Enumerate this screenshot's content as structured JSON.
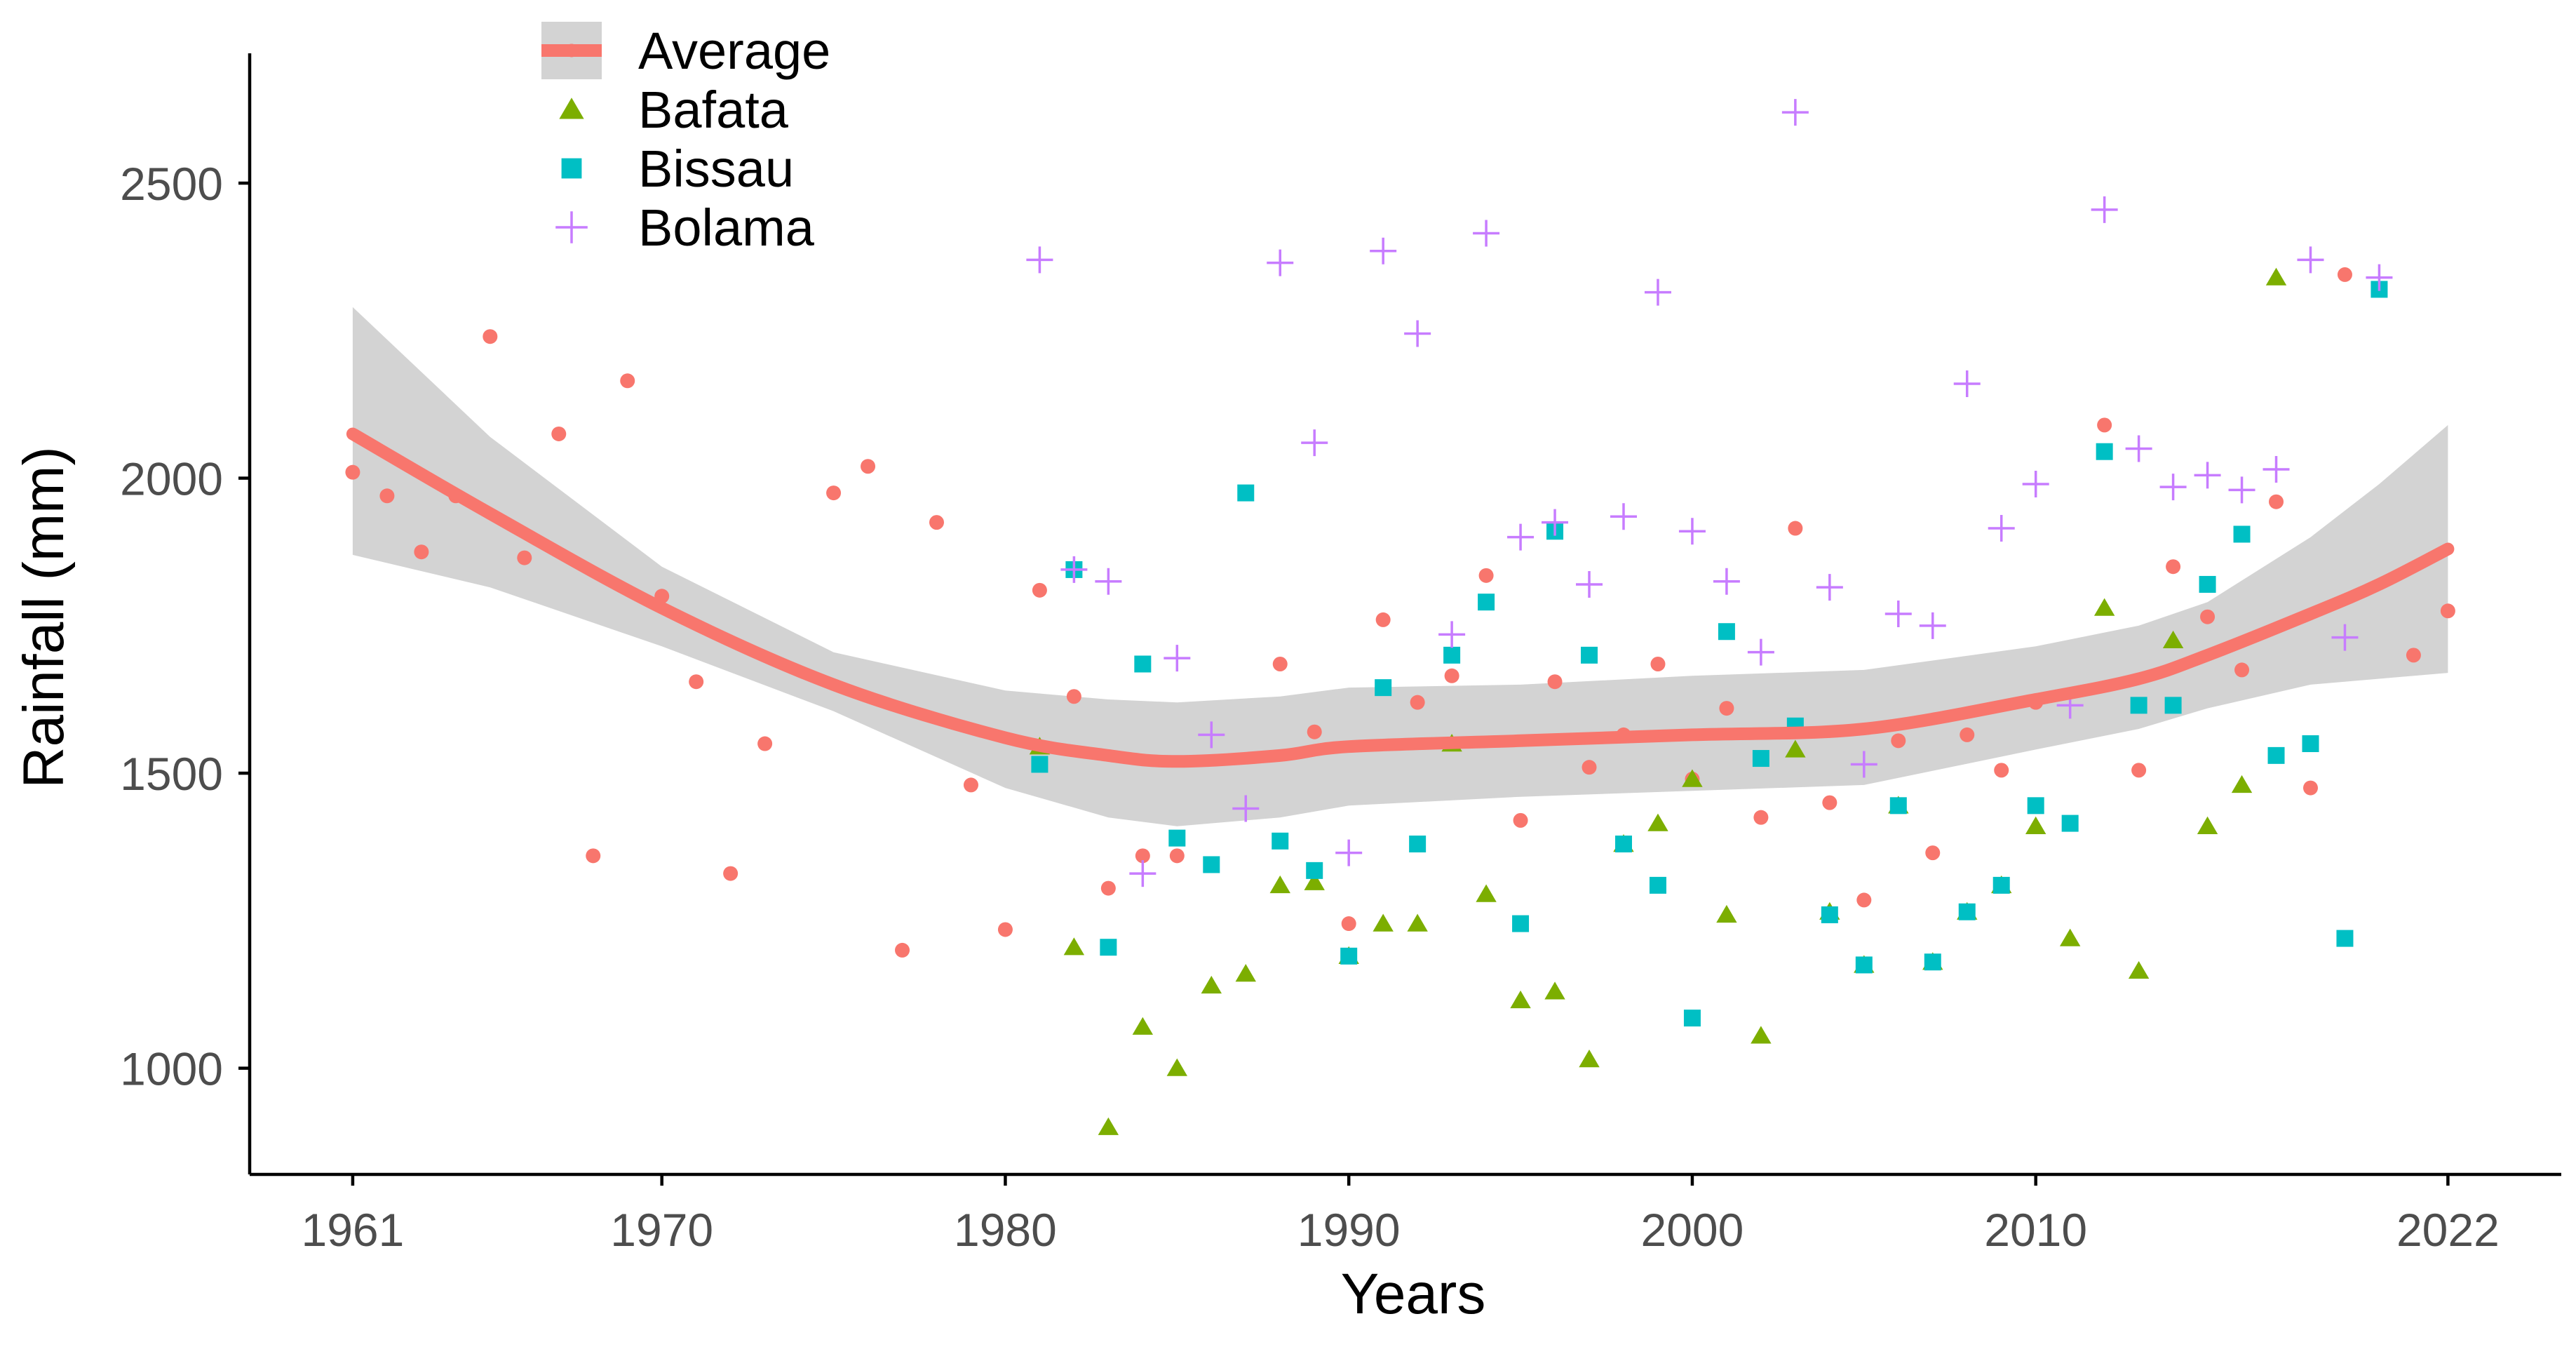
{
  "chart_data": {
    "type": "scatter",
    "title": "",
    "xlabel": "Years",
    "ylabel": "Rainfall (mm)",
    "xlim": [
      1958,
      2025.3
    ],
    "ylim": [
      820,
      2720
    ],
    "x_ticks": [
      1961,
      1970,
      1980,
      1990,
      2000,
      2010,
      2022
    ],
    "y_ticks": [
      1000,
      1500,
      2000,
      2500
    ],
    "grid": false,
    "legend_position": "top-left",
    "colors": {
      "average": "#F8766D",
      "bafata": "#7CAE00",
      "bissau": "#00BFC4",
      "bolama": "#C77CFF",
      "ribbon": "#D3D3D3"
    },
    "legend": [
      {
        "key": "average",
        "label": "Average",
        "marker": "line-point"
      },
      {
        "key": "bafata",
        "label": "Bafata",
        "marker": "triangle"
      },
      {
        "key": "bissau",
        "label": "Bissau",
        "marker": "square"
      },
      {
        "key": "bolama",
        "label": "Bolama",
        "marker": "plus"
      }
    ],
    "trend": {
      "name": "Average (smoothed fit)",
      "x": [
        1961,
        1965,
        1970,
        1975,
        1980,
        1983,
        1985,
        1988,
        1990,
        1995,
        2000,
        2005,
        2010,
        2013,
        2015,
        2018,
        2020,
        2022
      ],
      "y": [
        2075,
        1940,
        1780,
        1650,
        1560,
        1530,
        1520,
        1530,
        1545,
        1555,
        1565,
        1575,
        1625,
        1660,
        1700,
        1770,
        1820,
        1880
      ],
      "lower": [
        1870,
        1815,
        1715,
        1605,
        1475,
        1425,
        1410,
        1425,
        1445,
        1460,
        1470,
        1480,
        1540,
        1575,
        1610,
        1650,
        1660,
        1670
      ],
      "upper": [
        2290,
        2070,
        1850,
        1705,
        1640,
        1625,
        1620,
        1630,
        1645,
        1650,
        1665,
        1675,
        1715,
        1750,
        1790,
        1900,
        1990,
        2090
      ]
    },
    "series": [
      {
        "name": "Average",
        "key": "average",
        "x": [
          1961,
          1962,
          1963,
          1964,
          1965,
          1966,
          1967,
          1968,
          1969,
          1970,
          1971,
          1972,
          1973,
          1975,
          1976,
          1977,
          1978,
          1979,
          1980,
          1981,
          1982,
          1983,
          1984,
          1985,
          1988,
          1989,
          1990,
          1991,
          1992,
          1993,
          1994,
          1995,
          1996,
          1997,
          1998,
          1999,
          2000,
          2001,
          2002,
          2003,
          2004,
          2005,
          2006,
          2007,
          2008,
          2009,
          2010,
          2012,
          2013,
          2014,
          2015,
          2016,
          2017,
          2018,
          2019,
          2021,
          2022
        ],
        "y": [
          2010,
          1970,
          1875,
          1970,
          2240,
          1865,
          2075,
          1360,
          2165,
          1800,
          1655,
          1330,
          1550,
          1975,
          2020,
          1200,
          1925,
          1480,
          1235,
          1810,
          1630,
          1305,
          1360,
          1360,
          1685,
          1570,
          1245,
          1760,
          1620,
          1665,
          1835,
          1420,
          1655,
          1510,
          1565,
          1685,
          1490,
          1610,
          1425,
          1915,
          1450,
          1285,
          1555,
          1365,
          1565,
          1505,
          1620,
          2090,
          1505,
          1850,
          1765,
          1675,
          1960,
          1475,
          2345,
          1700,
          1775
        ]
      },
      {
        "name": "Bafata",
        "key": "bafata",
        "x": [
          1981,
          1982,
          1983,
          1984,
          1985,
          1986,
          1987,
          1988,
          1989,
          1990,
          1991,
          1992,
          1993,
          1994,
          1995,
          1996,
          1997,
          1998,
          1999,
          2000,
          2001,
          2002,
          2003,
          2004,
          2005,
          2006,
          2007,
          2008,
          2009,
          2010,
          2011,
          2012,
          2013,
          2014,
          2015,
          2016,
          2017
        ],
        "y": [
          1545,
          1205,
          900,
          1070,
          1000,
          1140,
          1160,
          1310,
          1315,
          1190,
          1245,
          1245,
          1550,
          1295,
          1115,
          1130,
          1015,
          1380,
          1415,
          1490,
          1260,
          1055,
          1540,
          1265,
          1175,
          1445,
          1180,
          1265,
          1310,
          1410,
          1220,
          1780,
          1165,
          1725,
          1410,
          1480,
          2340
        ]
      },
      {
        "name": "Bissau",
        "key": "bissau",
        "x": [
          1981,
          1982,
          1983,
          1984,
          1985,
          1986,
          1987,
          1988,
          1989,
          1990,
          1991,
          1992,
          1993,
          1994,
          1995,
          1996,
          1997,
          1998,
          1999,
          2000,
          2001,
          2002,
          2003,
          2004,
          2005,
          2006,
          2007,
          2008,
          2009,
          2010,
          2011,
          2012,
          2013,
          2014,
          2015,
          2016,
          2017,
          2018,
          2019,
          2020
        ],
        "y": [
          1515,
          1845,
          1205,
          1685,
          1390,
          1345,
          1975,
          1385,
          1335,
          1190,
          1645,
          1380,
          1700,
          1790,
          1245,
          1910,
          1700,
          1380,
          1310,
          1085,
          1740,
          1525,
          1580,
          1260,
          1175,
          1445,
          1180,
          1265,
          1310,
          1445,
          1415,
          2045,
          1615,
          1615,
          1820,
          1905,
          1530,
          1550,
          1220,
          2320
        ]
      },
      {
        "name": "Bolama",
        "key": "bolama",
        "x": [
          1981,
          1982,
          1983,
          1984,
          1985,
          1986,
          1987,
          1988,
          1989,
          1990,
          1991,
          1992,
          1993,
          1994,
          1995,
          1996,
          1997,
          1998,
          1999,
          2000,
          2001,
          2002,
          2003,
          2004,
          2005,
          2006,
          2007,
          2008,
          2009,
          2010,
          2011,
          2012,
          2013,
          2014,
          2015,
          2016,
          2017,
          2018,
          2019,
          2020
        ],
        "y": [
          2370,
          1845,
          1825,
          1330,
          1695,
          1565,
          1440,
          2365,
          2060,
          1365,
          2385,
          2245,
          1735,
          2415,
          1900,
          1925,
          1820,
          1935,
          2315,
          1910,
          1825,
          1705,
          2620,
          1815,
          1515,
          1770,
          1750,
          2160,
          1915,
          1990,
          1615,
          2455,
          2050,
          1985,
          2005,
          1980,
          2015,
          2370,
          1730,
          2340
        ]
      }
    ]
  }
}
